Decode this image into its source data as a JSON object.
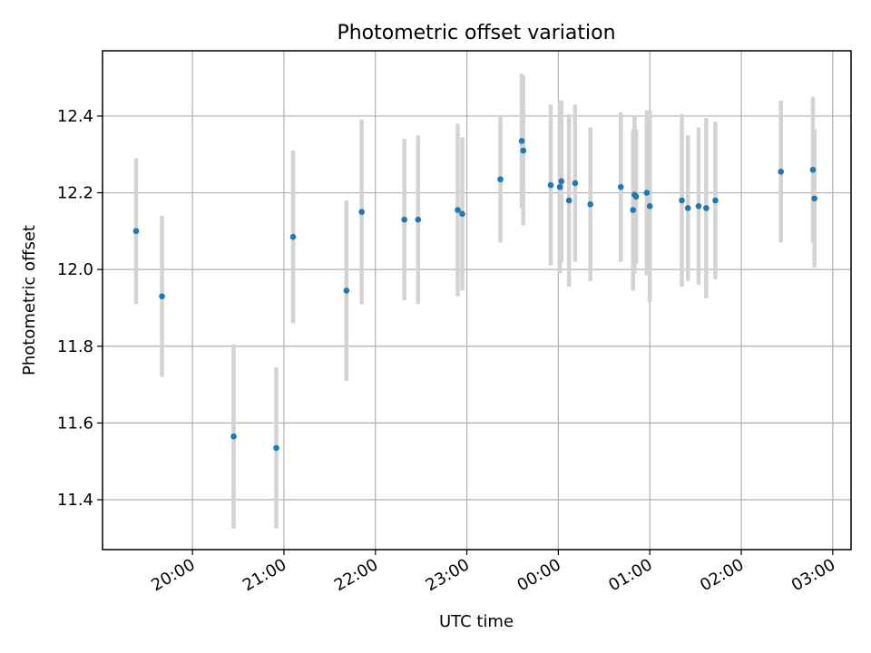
{
  "chart_data": {
    "type": "scatter",
    "title": "Photometric offset variation",
    "xlabel": "UTC time",
    "ylabel": "Photometric offset",
    "grid": true,
    "legend": "none",
    "x_unit": "UTC time (HH:MM)",
    "xlim": [
      "19:01",
      "03:12"
    ],
    "ylim": [
      11.27,
      12.57
    ],
    "x_ticks": [
      "20:00",
      "21:00",
      "22:00",
      "23:00",
      "00:00",
      "01:00",
      "02:00",
      "03:00"
    ],
    "y_ticks": [
      "11.4",
      "11.6",
      "11.8",
      "12.0",
      "12.2",
      "12.4"
    ],
    "colors": {
      "point": "#1f77b4",
      "errorbar": "#d3d3d3",
      "grid": "#b0b0b0"
    },
    "points": [
      {
        "x": "19:23",
        "y": 12.1,
        "err": 0.19
      },
      {
        "x": "19:40",
        "y": 11.93,
        "err": 0.21
      },
      {
        "x": "20:27",
        "y": 11.565,
        "err": 0.24
      },
      {
        "x": "20:55",
        "y": 11.535,
        "err": 0.21
      },
      {
        "x": "21:06",
        "y": 12.085,
        "err": 0.225
      },
      {
        "x": "21:41",
        "y": 11.945,
        "err": 0.235
      },
      {
        "x": "21:51",
        "y": 12.15,
        "err": 0.24
      },
      {
        "x": "22:19",
        "y": 12.13,
        "err": 0.21
      },
      {
        "x": "22:28",
        "y": 12.13,
        "err": 0.22
      },
      {
        "x": "22:54",
        "y": 12.155,
        "err": 0.225
      },
      {
        "x": "22:57",
        "y": 12.145,
        "err": 0.2
      },
      {
        "x": "23:22",
        "y": 12.235,
        "err": 0.165
      },
      {
        "x": "23:36",
        "y": 12.335,
        "err": 0.175
      },
      {
        "x": "23:37",
        "y": 12.31,
        "err": 0.195
      },
      {
        "x": "23:55",
        "y": 12.22,
        "err": 0.21
      },
      {
        "x": "00:01",
        "y": 12.215,
        "err": 0.225
      },
      {
        "x": "00:02",
        "y": 12.23,
        "err": 0.21
      },
      {
        "x": "00:07",
        "y": 12.18,
        "err": 0.225
      },
      {
        "x": "00:11",
        "y": 12.225,
        "err": 0.205
      },
      {
        "x": "00:21",
        "y": 12.17,
        "err": 0.2
      },
      {
        "x": "00:41",
        "y": 12.215,
        "err": 0.195
      },
      {
        "x": "00:49",
        "y": 12.155,
        "err": 0.21
      },
      {
        "x": "00:50",
        "y": 12.195,
        "err": 0.205
      },
      {
        "x": "00:51",
        "y": 12.19,
        "err": 0.175
      },
      {
        "x": "00:58",
        "y": 12.2,
        "err": 0.215
      },
      {
        "x": "01:00",
        "y": 12.165,
        "err": 0.25
      },
      {
        "x": "01:21",
        "y": 12.18,
        "err": 0.225
      },
      {
        "x": "01:25",
        "y": 12.16,
        "err": 0.19
      },
      {
        "x": "01:32",
        "y": 12.165,
        "err": 0.205
      },
      {
        "x": "01:37",
        "y": 12.16,
        "err": 0.235
      },
      {
        "x": "01:43",
        "y": 12.18,
        "err": 0.205
      },
      {
        "x": "02:26",
        "y": 12.255,
        "err": 0.185
      },
      {
        "x": "02:47",
        "y": 12.26,
        "err": 0.19
      },
      {
        "x": "02:48",
        "y": 12.185,
        "err": 0.18
      }
    ]
  }
}
